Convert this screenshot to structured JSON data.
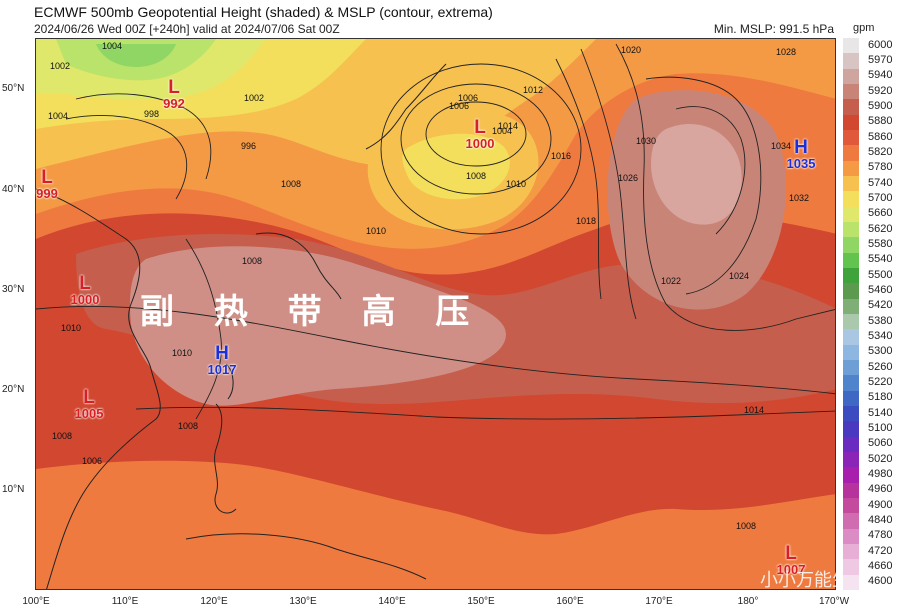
{
  "header": {
    "title": "ECMWF 500mb Geopotential Height (shaded) & MSLP (contour, extrema)",
    "subtitle": "2024/06/26 Wed 00Z [+240h] valid at 2024/07/06 Sat 00Z",
    "min_mslp": "Min. MSLP: 991.5 hPa",
    "units": "gpm"
  },
  "axes": {
    "lat_labels": [
      "50°N",
      "40°N",
      "30°N",
      "20°N",
      "10°N"
    ],
    "lon_labels": [
      "100°E",
      "110°E",
      "120°E",
      "130°E",
      "140°E",
      "150°E",
      "160°E",
      "170°E",
      "180°",
      "170°W"
    ]
  },
  "colorbar": {
    "labels": [
      "6000",
      "5970",
      "5940",
      "5920",
      "5900",
      "5880",
      "5860",
      "5820",
      "5780",
      "5740",
      "5700",
      "5660",
      "5620",
      "5580",
      "5540",
      "5500",
      "5460",
      "5420",
      "5380",
      "5340",
      "5300",
      "5260",
      "5220",
      "5180",
      "5140",
      "5100",
      "5060",
      "5020",
      "4980",
      "4960",
      "4900",
      "4840",
      "4780",
      "4720",
      "4660",
      "4600"
    ],
    "colors": [
      "#e8e6e6",
      "#d8c4c2",
      "#cfa59f",
      "#c98478",
      "#c55e4c",
      "#d2472f",
      "#e0593a",
      "#ef7a3f",
      "#f49a45",
      "#f6c14f",
      "#f3df5c",
      "#dfe86a",
      "#b9e36a",
      "#8fd664",
      "#62c44f",
      "#3da33a",
      "#5b9a4f",
      "#7fae77",
      "#a9c8ac",
      "#a9c6e3",
      "#8db7e0",
      "#6e9ed6",
      "#4f84cc",
      "#3e68c4",
      "#3a4cbf",
      "#4a39c0",
      "#6a2cc0",
      "#8a25b8",
      "#a81fae",
      "#b6339e",
      "#c44a9e",
      "#d06cb0",
      "#dc8cc4",
      "#e7aed6",
      "#efc9e4",
      "#f6e3f1"
    ]
  },
  "pressure_systems": [
    {
      "type": "L",
      "value": "992"
    },
    {
      "type": "L",
      "value": "999"
    },
    {
      "type": "L",
      "value": "1000"
    },
    {
      "type": "L",
      "value": "1000"
    },
    {
      "type": "L",
      "value": "1005"
    },
    {
      "type": "H",
      "value": "1017"
    },
    {
      "type": "H",
      "value": "1035"
    },
    {
      "type": "L",
      "value": "1007"
    }
  ],
  "contour_labels": [
    "1002",
    "1004",
    "1004",
    "998",
    "996",
    "1002",
    "1006",
    "1008",
    "1004",
    "1008",
    "1010",
    "1006",
    "1008",
    "1012",
    "1014",
    "1010",
    "1016",
    "1018",
    "1020",
    "1022",
    "1024",
    "1026",
    "1028",
    "1030",
    "1032",
    "1034",
    "1014",
    "1010",
    "1008",
    "1008",
    "1010",
    "1008",
    "1006"
  ],
  "annotation": "副 热 带 高 压",
  "watermark": "小小万能生"
}
